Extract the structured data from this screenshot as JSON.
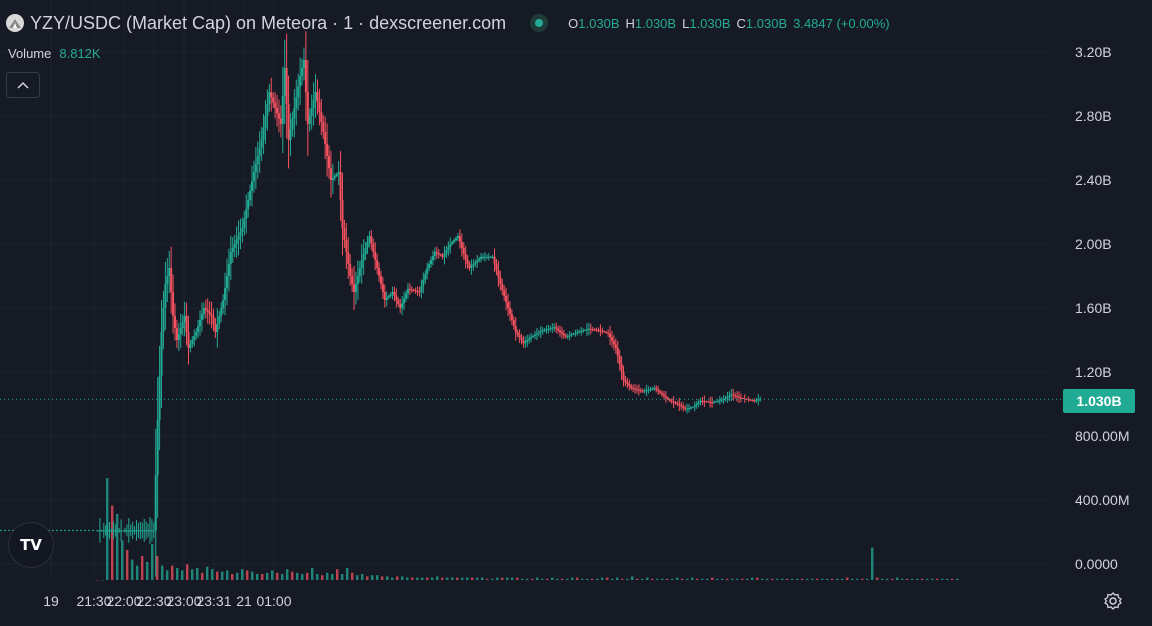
{
  "legend": {
    "symbol": "YZY/USDC (Market Cap) on Meteora · 1 · dexscreener.com",
    "open_label": "O",
    "open": "1.030B",
    "high_label": "H",
    "high": "1.030B",
    "low_label": "L",
    "low": "1.030B",
    "close_label": "C",
    "close": "1.030B",
    "change": "3.4847 (+0.00%)"
  },
  "volume": {
    "label": "Volume",
    "value": "8.812K"
  },
  "last_price_label": "1.030B",
  "tv_logo": "TV",
  "colors": {
    "up": "#22ab94",
    "down": "#f7525f",
    "background": "#161a25",
    "grid": "#1f2330",
    "text": "#d1d4dc"
  },
  "icons": [
    "collapse-chevron-up-icon",
    "tradingview-logo-icon",
    "settings-gear-icon",
    "live-status-dot-icon",
    "token-logo-icon"
  ],
  "chart_data": {
    "type": "candlestick",
    "y_axis": {
      "range": [
        0,
        3300000000
      ],
      "ticks": [
        {
          "value": 3200000000,
          "label": "3.20B"
        },
        {
          "value": 2800000000,
          "label": "2.80B"
        },
        {
          "value": 2400000000,
          "label": "2.40B"
        },
        {
          "value": 2000000000,
          "label": "2.00B"
        },
        {
          "value": 1600000000,
          "label": "1.60B"
        },
        {
          "value": 1200000000,
          "label": "1.20B"
        },
        {
          "value": 800000000,
          "label": "800.00M"
        },
        {
          "value": 400000000,
          "label": "400.00M"
        },
        {
          "value": 0,
          "label": "0.0000"
        }
      ]
    },
    "x_axis": {
      "range_minutes": [
        0,
        225
      ],
      "ticks": [
        {
          "t": 0,
          "label": "19"
        },
        {
          "t": 43,
          "label": "21:30"
        },
        {
          "t": 73,
          "label": "22:00"
        },
        {
          "t": 103,
          "label": "22:30"
        },
        {
          "t": 133,
          "label": "23:00"
        },
        {
          "t": 163,
          "label": "23:31"
        },
        {
          "t": 193,
          "label": "21"
        },
        {
          "t": 223,
          "label": "01:00"
        }
      ]
    },
    "last_price": 1030000000,
    "market_cap_path": [
      [
        0,
        0.21
      ],
      [
        15,
        0.21
      ],
      [
        16,
        0.9
      ],
      [
        17,
        1.45
      ],
      [
        18,
        1.75
      ],
      [
        19,
        1.85
      ],
      [
        20,
        1.55
      ],
      [
        21,
        1.4
      ],
      [
        23,
        1.55
      ],
      [
        24,
        1.35
      ],
      [
        26,
        1.45
      ],
      [
        28,
        1.6
      ],
      [
        30,
        1.55
      ],
      [
        31,
        1.45
      ],
      [
        33,
        1.65
      ],
      [
        35,
        1.95
      ],
      [
        38,
        2.1
      ],
      [
        41,
        2.45
      ],
      [
        43,
        2.65
      ],
      [
        45,
        2.95
      ],
      [
        48,
        2.75
      ],
      [
        49,
        3.1
      ],
      [
        50,
        2.65
      ],
      [
        53,
        3.05
      ],
      [
        54,
        3.15
      ],
      [
        55,
        2.75
      ],
      [
        57,
        2.95
      ],
      [
        59,
        2.7
      ],
      [
        61,
        2.4
      ],
      [
        63,
        2.45
      ],
      [
        64,
        2.1
      ],
      [
        66,
        1.8
      ],
      [
        67,
        1.7
      ],
      [
        69,
        1.9
      ],
      [
        71,
        2.05
      ],
      [
        73,
        1.85
      ],
      [
        75,
        1.65
      ],
      [
        77,
        1.7
      ],
      [
        79,
        1.6
      ],
      [
        81,
        1.72
      ],
      [
        84,
        1.7
      ],
      [
        86,
        1.85
      ],
      [
        88,
        1.95
      ],
      [
        90,
        1.92
      ],
      [
        92,
        2.0
      ],
      [
        94,
        2.05
      ],
      [
        96,
        1.9
      ],
      [
        97,
        1.85
      ],
      [
        100,
        1.92
      ],
      [
        103,
        1.92
      ],
      [
        105,
        1.75
      ],
      [
        107,
        1.6
      ],
      [
        109,
        1.45
      ],
      [
        111,
        1.38
      ],
      [
        113,
        1.42
      ],
      [
        116,
        1.46
      ],
      [
        119,
        1.48
      ],
      [
        122,
        1.42
      ],
      [
        125,
        1.45
      ],
      [
        128,
        1.47
      ],
      [
        131,
        1.46
      ],
      [
        133,
        1.44
      ],
      [
        135,
        1.35
      ],
      [
        137,
        1.15
      ],
      [
        139,
        1.1
      ],
      [
        142,
        1.08
      ],
      [
        145,
        1.1
      ],
      [
        147,
        1.06
      ],
      [
        149,
        1.02
      ],
      [
        151,
        1.0
      ],
      [
        153,
        0.97
      ],
      [
        155,
        0.98
      ],
      [
        157,
        1.02
      ],
      [
        160,
        1.01
      ],
      [
        163,
        1.03
      ],
      [
        165,
        1.06
      ],
      [
        167,
        1.04
      ],
      [
        169,
        1.03
      ],
      [
        171,
        1.02
      ],
      [
        172,
        1.03
      ]
    ],
    "volume_bars_relative": [
      0.0,
      0.0,
      0.85,
      0.62,
      0.55,
      0.33,
      0.25,
      0.17,
      0.12,
      0.2,
      0.15,
      0.3,
      0.2,
      0.12,
      0.08,
      0.12,
      0.1,
      0.08,
      0.13,
      0.09,
      0.1,
      0.06,
      0.11,
      0.09,
      0.07,
      0.07,
      0.08,
      0.05,
      0.06,
      0.09,
      0.08,
      0.07,
      0.05,
      0.05,
      0.06,
      0.08,
      0.06,
      0.05,
      0.09,
      0.07,
      0.06,
      0.05,
      0.06,
      0.1,
      0.05,
      0.04,
      0.06,
      0.05,
      0.09,
      0.05,
      0.1,
      0.06,
      0.04,
      0.05,
      0.03,
      0.04,
      0.04,
      0.03,
      0.03,
      0.02,
      0.03,
      0.03,
      0.02,
      0.02,
      0.02,
      0.02,
      0.02,
      0.02,
      0.03,
      0.02,
      0.02,
      0.02,
      0.02,
      0.02,
      0.02,
      0.02,
      0.02,
      0.02,
      0.01,
      0.01,
      0.02,
      0.02,
      0.02,
      0.02,
      0.02,
      0.01,
      0.01,
      0.01,
      0.02,
      0.01,
      0.01,
      0.02,
      0.01,
      0.01,
      0.01,
      0.02,
      0.02,
      0.01,
      0.01,
      0.01,
      0.01,
      0.02,
      0.02,
      0.01,
      0.02,
      0.01,
      0.01,
      0.03,
      0.01,
      0.01,
      0.02,
      0.01,
      0.01,
      0.01,
      0.01,
      0.01,
      0.02,
      0.01,
      0.01,
      0.02,
      0.01,
      0.01,
      0.01,
      0.02,
      0.01,
      0.01,
      0.01,
      0.01,
      0.01,
      0.01,
      0.01,
      0.02,
      0.02,
      0.01,
      0.01,
      0.01,
      0.01,
      0.01,
      0.01,
      0.01,
      0.01,
      0.01,
      0.01,
      0.01,
      0.01,
      0.01,
      0.01,
      0.01,
      0.01,
      0.01,
      0.02,
      0.01,
      0.01,
      0.01,
      0.01,
      0.27,
      0.02,
      0.01,
      0.01,
      0.01,
      0.02,
      0.01,
      0.01,
      0.01,
      0.01,
      0.01,
      0.01,
      0.01,
      0.01,
      0.01,
      0.01,
      0.01,
      0.01,
      0.01
    ]
  }
}
